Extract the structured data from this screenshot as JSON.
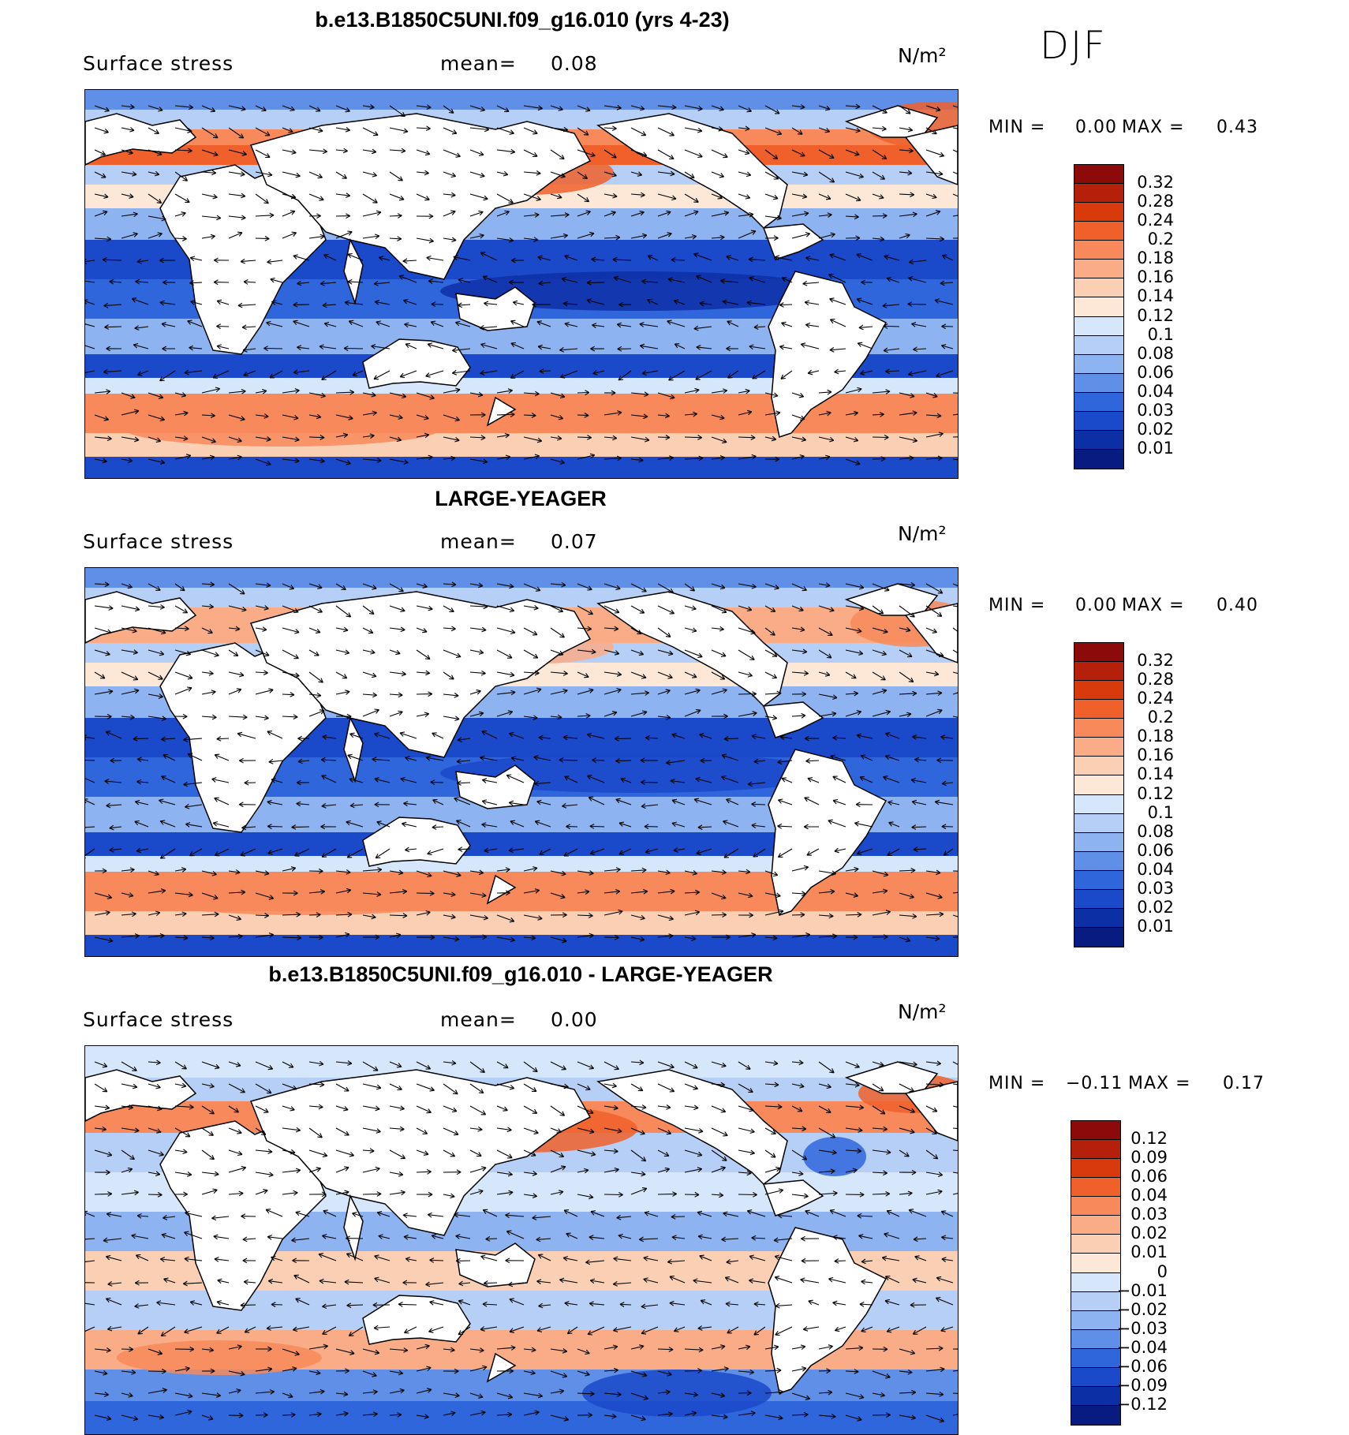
{
  "season": "DJF",
  "panels": [
    {
      "title": "b.e13.B1850C5UNI.f09_g16.010 (yrs 4-23)",
      "variable": "Surface stress",
      "mean_label": "mean=",
      "mean_value": "0.08",
      "units": "N/m²",
      "min_label": "MIN =",
      "min_value": "0.00",
      "max_label": "MAX =",
      "max_value": "0.43",
      "colorbar_labels": [
        "0.32",
        "0.28",
        "0.24",
        "0.2",
        "0.18",
        "0.16",
        "0.14",
        "0.12",
        "0.1",
        "0.08",
        "0.06",
        "0.04",
        "0.03",
        "0.02",
        "0.01"
      ],
      "colorbar_colors": [
        "#8c0a0a",
        "#b4200a",
        "#d93a0c",
        "#f0602a",
        "#f7895a",
        "#f9ac86",
        "#fbcfb3",
        "#fde8d8",
        "#d6e6fb",
        "#b5cff6",
        "#8db3f0",
        "#5f8fe6",
        "#2f66dc",
        "#1a49c9",
        "#0d2fa6",
        "#081b80"
      ]
    },
    {
      "title": "LARGE-YEAGER",
      "variable": "Surface stress",
      "mean_label": "mean=",
      "mean_value": "0.07",
      "units": "N/m²",
      "min_label": "MIN =",
      "min_value": "0.00",
      "max_label": "MAX =",
      "max_value": "0.40",
      "colorbar_labels": [
        "0.32",
        "0.28",
        "0.24",
        "0.2",
        "0.18",
        "0.16",
        "0.14",
        "0.12",
        "0.1",
        "0.08",
        "0.06",
        "0.04",
        "0.03",
        "0.02",
        "0.01"
      ],
      "colorbar_colors": [
        "#8c0a0a",
        "#b4200a",
        "#d93a0c",
        "#f0602a",
        "#f7895a",
        "#f9ac86",
        "#fbcfb3",
        "#fde8d8",
        "#d6e6fb",
        "#b5cff6",
        "#8db3f0",
        "#5f8fe6",
        "#2f66dc",
        "#1a49c9",
        "#0d2fa6",
        "#081b80"
      ]
    },
    {
      "title": "b.e13.B1850C5UNI.f09_g16.010 - LARGE-YEAGER",
      "variable": "Surface stress",
      "mean_label": "mean=",
      "mean_value": "0.00",
      "units": "N/m²",
      "min_label": "MIN =",
      "min_value": "−0.11",
      "max_label": "MAX =",
      "max_value": "0.17",
      "colorbar_labels": [
        "0.12",
        "0.09",
        "0.06",
        "0.04",
        "0.03",
        "0.02",
        "0.01",
        "0",
        "−0.01",
        "−0.02",
        "−0.03",
        "−0.04",
        "−0.06",
        "−0.09",
        "−0.12"
      ],
      "colorbar_colors": [
        "#8c0a0a",
        "#b4200a",
        "#d93a0c",
        "#f0602a",
        "#f7895a",
        "#f9ac86",
        "#fbcfb3",
        "#fde8d8",
        "#d6e6fb",
        "#b5cff6",
        "#8db3f0",
        "#5f8fe6",
        "#2f66dc",
        "#1a49c9",
        "#0d2fa6",
        "#081b80"
      ]
    }
  ]
}
